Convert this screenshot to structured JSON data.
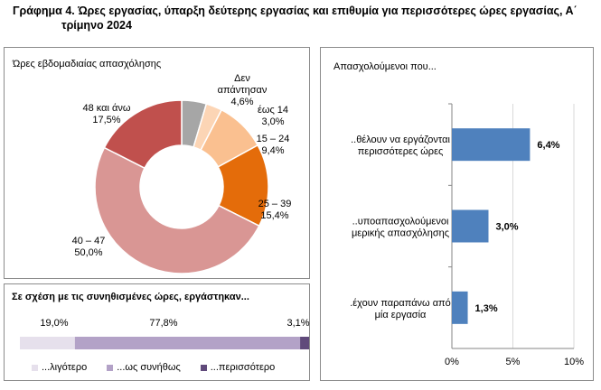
{
  "header": {
    "title_line1": "Γράφημα 4. Ώρες εργασίας, ύπαρξη δεύτερης εργασίας και επιθυμία για περισσότερες ώρες εργασίας, Α΄",
    "title_line2": "τρίμηνο 2024"
  },
  "chart_data": [
    {
      "type": "pie",
      "style": "donut",
      "title": "Ώρες εβδομαδιαίας απασχόλησης",
      "slices": [
        {
          "label_lines": [
            "Δεν",
            "απάντησαν"
          ],
          "value": 4.6,
          "value_label": "4,6%",
          "color": "#a6a6a6"
        },
        {
          "label_lines": [
            "έως 14"
          ],
          "value": 3.0,
          "value_label": "3,0%",
          "color": "#fcd5b5"
        },
        {
          "label_lines": [
            "15 – 24"
          ],
          "value": 9.4,
          "value_label": "9,4%",
          "color": "#fac090"
        },
        {
          "label_lines": [
            "25 – 39"
          ],
          "value": 15.4,
          "value_label": "15,4%",
          "color": "#e46c0a"
        },
        {
          "label_lines": [
            "40 – 47"
          ],
          "value": 50.0,
          "value_label": "50,0%",
          "color": "#d99694"
        },
        {
          "label_lines": [
            "48 και άνω"
          ],
          "value": 17.5,
          "value_label": "17,5%",
          "color": "#c0504d"
        }
      ]
    },
    {
      "type": "bar",
      "orientation": "horizontal",
      "title": "Απασχολούμενοι που...",
      "categories": [
        [
          "..θέλουν να εργάζονται",
          "περισσότερες ώρες"
        ],
        [
          "..υποαπασχολούμενοι",
          "μερικής απασχόλησης"
        ],
        [
          ".έχουν παραπάνω από",
          "μία εργασία"
        ]
      ],
      "values": [
        6.4,
        3.0,
        1.3
      ],
      "value_labels": [
        "6,4%",
        "3,0%",
        "1,3%"
      ],
      "color": "#4f81bd",
      "xlim": [
        0,
        10
      ],
      "xticks": [
        0,
        5,
        10
      ],
      "xtick_labels": [
        "0%",
        "5%",
        "10%"
      ],
      "grid": "vertical"
    },
    {
      "type": "bar",
      "orientation": "horizontal",
      "stacked": "100%",
      "title": "Σε σχέση με τις συνηθισμένες ώρες, εργάστηκαν...",
      "series": [
        {
          "name": "...λιγότερο",
          "value": 19.0,
          "value_label": "19,0%",
          "color": "#e6e0ec"
        },
        {
          "name": "...ως συνήθως",
          "value": 77.8,
          "value_label": "77,8%",
          "color": "#b3a2c7"
        },
        {
          "name": "...περισσότερο",
          "value": 3.1,
          "value_label": "3,1%",
          "color": "#604a7b"
        }
      ],
      "legend": "bottom"
    }
  ]
}
